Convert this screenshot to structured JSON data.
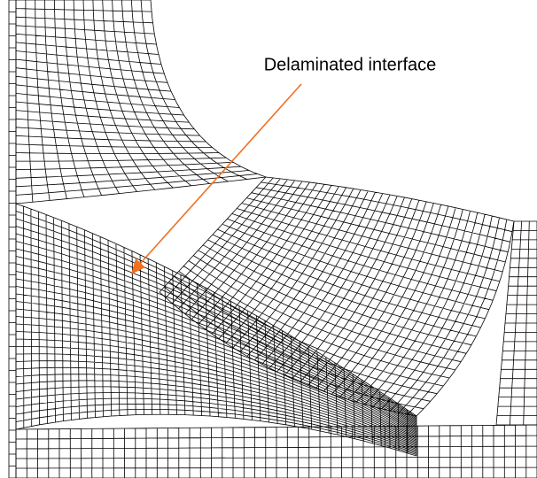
{
  "annotation": {
    "label": "Delaminated interface"
  }
}
